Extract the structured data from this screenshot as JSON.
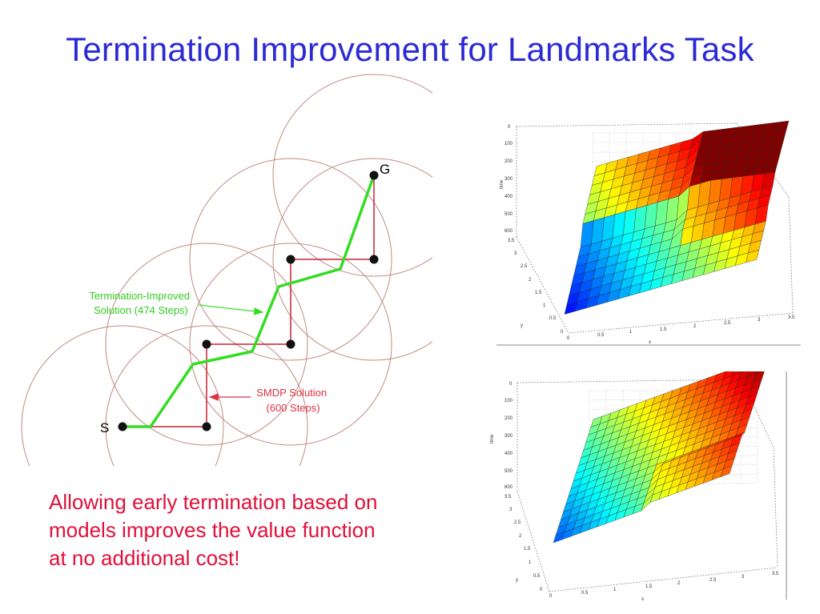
{
  "title": "Termination Improvement for Landmarks Task",
  "caption": {
    "lines": [
      "Allowing early termination based on",
      "models improves the value function",
      "at no additional cost!"
    ]
  },
  "diagram": {
    "start_label": "S",
    "goal_label": "G",
    "improved_label": [
      "Termination-Improved",
      "Solution (474 Steps)"
    ],
    "smdp_label": [
      "SMDP Solution",
      "(600 Steps)"
    ]
  },
  "colors": {
    "title": "#2b2bd6",
    "caption": "#e0103a",
    "improved_path": "#33dd22",
    "smdp_path": "#cc2233",
    "circles": "#c08a80"
  },
  "plot_top": {
    "ylabel": "time",
    "x_label": "x",
    "y_label": "y",
    "time_ticks": [
      "0",
      "100",
      "200",
      "300",
      "400",
      "500",
      "600"
    ],
    "x_ticks": [
      "0",
      "0.5",
      "1",
      "1.5",
      "2",
      "2.5",
      "3",
      "3.5"
    ],
    "y_ticks": [
      "3.5",
      "3",
      "2.5",
      "2",
      "1.5",
      "1",
      "0.5",
      "0"
    ]
  },
  "plot_bottom": {
    "ylabel": "time",
    "x_label": "x",
    "y_label": "y",
    "time_ticks": [
      "0",
      "100",
      "200",
      "300",
      "400",
      "500",
      "600"
    ],
    "x_ticks": [
      "0",
      "0.5",
      "1",
      "1.5",
      "2",
      "2.5",
      "3",
      "3.5"
    ],
    "y_ticks": [
      "3.5",
      "3",
      "2.5",
      "2",
      "1.5",
      "1",
      "0.5",
      "0"
    ]
  }
}
